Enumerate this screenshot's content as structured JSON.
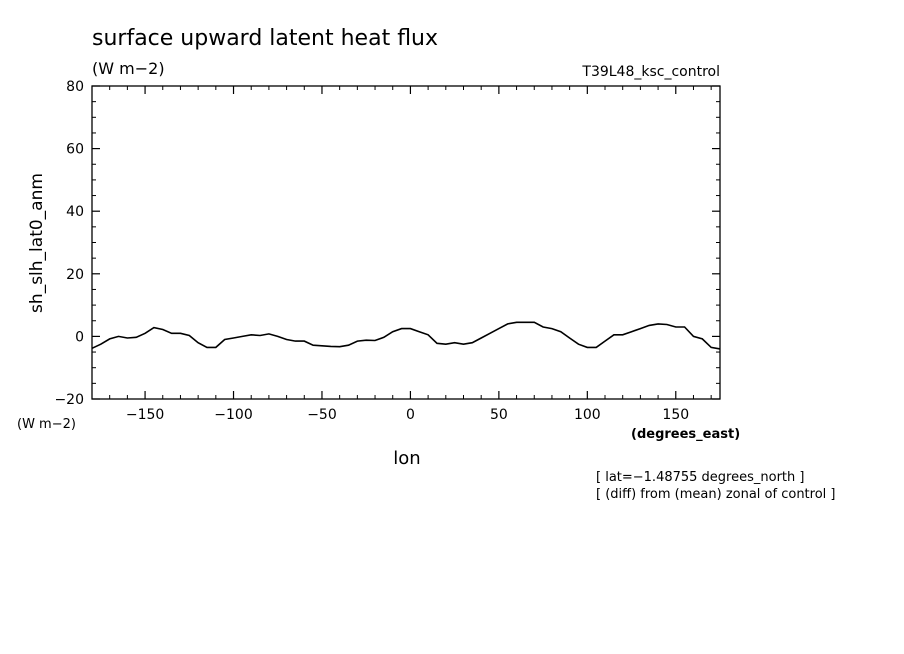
{
  "chart_data": {
    "type": "line",
    "title": "surface upward latent heat flux",
    "title_units": "(W m−2)",
    "run_label": "T39L48_ksc_control",
    "xlabel": "lon",
    "x_units": "(degrees_east)",
    "ylabel": "sh_slh_lat0_anm",
    "y_units": "(W m−2)",
    "xlim": [
      -180,
      175
    ],
    "ylim": [
      -20,
      80
    ],
    "x_ticks": [
      -150,
      -100,
      -50,
      0,
      50,
      100,
      150
    ],
    "y_ticks": [
      -20,
      0,
      20,
      40,
      60,
      80
    ],
    "x_tick_labels": [
      "−150",
      "−100",
      "−50",
      "0",
      "50",
      "100",
      "150"
    ],
    "y_tick_labels": [
      "−20",
      "0",
      "20",
      "40",
      "60",
      "80"
    ],
    "x_minor_step": 10,
    "y_minor_step": 5,
    "grid": false,
    "notes": [
      "[ lat=−1.48755 degrees_north ]",
      "[ (diff) from (mean) zonal of control ]"
    ],
    "series": [
      {
        "x": [
          -180,
          -175,
          -170,
          -165,
          -160,
          -155,
          -150,
          -145,
          -140,
          -135,
          -130,
          -125,
          -120,
          -115,
          -110,
          -105,
          -100,
          -95,
          -90,
          -85,
          -80,
          -75,
          -70,
          -65,
          -60,
          -55,
          -50,
          -45,
          -40,
          -35,
          -30,
          -25,
          -20,
          -15,
          -10,
          -5,
          0,
          5,
          10,
          15,
          20,
          25,
          30,
          35,
          40,
          45,
          50,
          55,
          60,
          65,
          70,
          75,
          80,
          85,
          90,
          95,
          100,
          105,
          110,
          115,
          120,
          125,
          130,
          135,
          140,
          145,
          150,
          155,
          160,
          165,
          170,
          175
        ],
        "values": [
          -3.8,
          -2.5,
          -0.8,
          0.0,
          -0.5,
          -0.3,
          1.0,
          2.8,
          2.2,
          1.0,
          1.0,
          0.3,
          -2.0,
          -3.5,
          -3.5,
          -1.0,
          -0.5,
          0.0,
          0.5,
          0.3,
          0.8,
          0.0,
          -1.0,
          -1.5,
          -1.5,
          -2.8,
          -3.0,
          -3.2,
          -3.3,
          -2.8,
          -1.5,
          -1.2,
          -1.3,
          -0.3,
          1.5,
          2.5,
          2.5,
          1.5,
          0.5,
          -2.2,
          -2.5,
          -2.0,
          -2.5,
          -2.0,
          -0.5,
          1.0,
          2.5,
          4.0,
          4.5,
          4.5,
          4.5,
          3.0,
          2.5,
          1.5,
          -0.5,
          -2.5,
          -3.5,
          -3.5,
          -1.5,
          0.5,
          0.5,
          1.5,
          2.5,
          3.5,
          4.0,
          3.8,
          3.0,
          3.0,
          0.0,
          -0.8,
          -3.5,
          -4.0
        ]
      }
    ]
  }
}
